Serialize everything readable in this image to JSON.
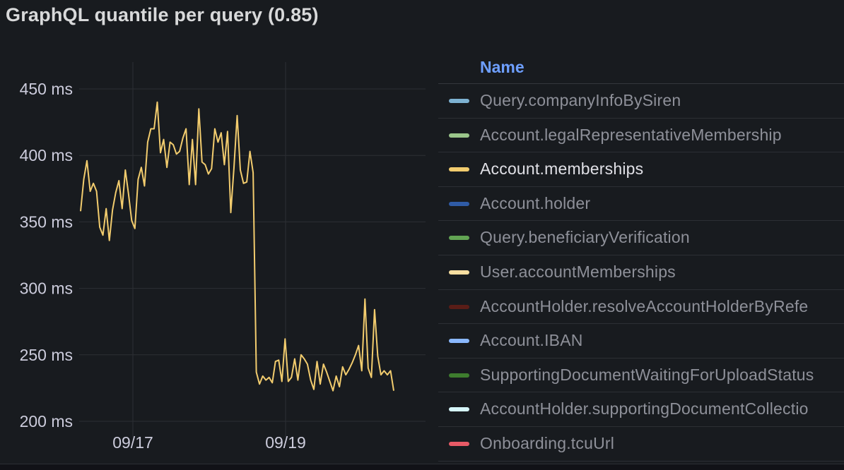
{
  "panel": {
    "title": "GraphQL quantile per query (0.85)"
  },
  "legend": {
    "header": "Name",
    "items": [
      {
        "label": "Query.companyInfoBySiren",
        "color": "#7eb2d2",
        "active": false
      },
      {
        "label": "Account.legalRepresentativeMembership",
        "color": "#9bc68b",
        "active": false
      },
      {
        "label": "Account.memberships",
        "color": "#f2cc6e",
        "active": true
      },
      {
        "label": "Account.holder",
        "color": "#2f5ba6",
        "active": false
      },
      {
        "label": "Query.beneficiaryVerification",
        "color": "#62a453",
        "active": false
      },
      {
        "label": "User.accountMemberships",
        "color": "#f7dea0",
        "active": false
      },
      {
        "label": "AccountHolder.resolveAccountHolderByRefe",
        "color": "#5a1d17",
        "active": false
      },
      {
        "label": "Account.IBAN",
        "color": "#8ab8ff",
        "active": false
      },
      {
        "label": "SupportingDocumentWaitingForUploadStatus",
        "color": "#3e7d2e",
        "active": false
      },
      {
        "label": "AccountHolder.supportingDocumentCollectio",
        "color": "#d6f6fa",
        "active": false
      },
      {
        "label": "Onboarding.tcuUrl",
        "color": "#e85a66",
        "active": false
      }
    ]
  },
  "chart_data": {
    "type": "line",
    "title": "GraphQL quantile per query (0.85)",
    "y_unit": "ms",
    "ylim": [
      200,
      460
    ],
    "y_ticks": [
      "450 ms",
      "400 ms",
      "350 ms",
      "300 ms",
      "250 ms",
      "200 ms"
    ],
    "y_tick_values": [
      450,
      400,
      350,
      300,
      250,
      200
    ],
    "x_ticks": [
      "09/17",
      "09/19"
    ],
    "grid": true,
    "legend_placement": "right",
    "series": [
      {
        "name": "Account.memberships",
        "color": "#f2cc6e",
        "values": [
          358,
          382,
          396,
          373,
          379,
          373,
          346,
          340,
          360,
          336,
          359,
          372,
          381,
          360,
          389,
          371,
          351,
          345,
          382,
          391,
          377,
          410,
          420,
          420,
          440,
          402,
          412,
          391,
          410,
          408,
          401,
          403,
          413,
          420,
          378,
          412,
          378,
          435,
          395,
          393,
          386,
          390,
          420,
          410,
          417,
          393,
          418,
          357,
          391,
          430,
          389,
          379,
          380,
          403,
          387,
          237,
          228,
          234,
          231,
          233,
          229,
          245,
          246,
          230,
          262,
          230,
          233,
          247,
          231,
          250,
          247,
          243,
          231,
          224,
          245,
          228,
          243,
          237,
          230,
          223,
          234,
          226,
          241,
          235,
          239,
          244,
          250,
          257,
          238,
          292,
          240,
          233,
          284,
          249,
          235,
          238,
          235,
          238,
          223
        ]
      }
    ]
  }
}
